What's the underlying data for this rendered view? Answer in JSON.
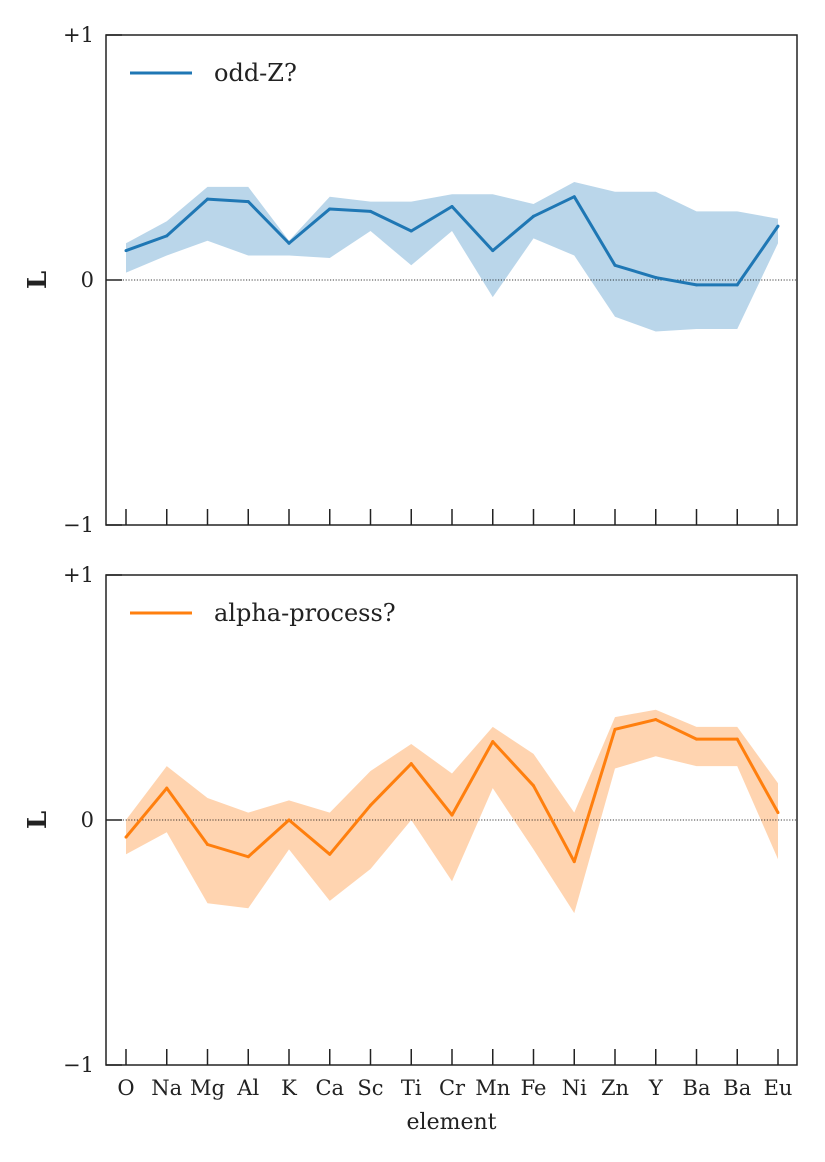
{
  "chart_data": [
    {
      "type": "line",
      "panel": "top",
      "categories": [
        "O",
        "Na",
        "Mg",
        "Al",
        "K",
        "Ca",
        "Sc",
        "Ti",
        "Cr",
        "Mn",
        "Fe",
        "Ni",
        "Zn",
        "Y",
        "Ba",
        "Ba",
        "Eu"
      ],
      "ylabel": "L",
      "xlabel": "",
      "ylim": [
        -1,
        1
      ],
      "yticks": [
        {
          "value": 1,
          "label": "+1"
        },
        {
          "value": 0,
          "label": "0"
        },
        {
          "value": -1,
          "label": "−1"
        }
      ],
      "show_x_tick_labels": false,
      "zero_line": "dotted",
      "legend_placement": "upper-left",
      "series": [
        {
          "name": "odd-Z?",
          "color": "#1f77b4",
          "band_color": "#bad6ea",
          "values": [
            0.12,
            0.18,
            0.33,
            0.32,
            0.15,
            0.29,
            0.28,
            0.2,
            0.3,
            0.12,
            0.26,
            0.34,
            0.06,
            0.01,
            -0.02,
            -0.02,
            0.22
          ],
          "upper": [
            0.15,
            0.24,
            0.38,
            0.38,
            0.16,
            0.34,
            0.32,
            0.32,
            0.35,
            0.35,
            0.31,
            0.4,
            0.36,
            0.36,
            0.28,
            0.28,
            0.25
          ],
          "lower": [
            0.03,
            0.1,
            0.16,
            0.1,
            0.1,
            0.09,
            0.2,
            0.06,
            0.2,
            -0.07,
            0.17,
            0.1,
            -0.15,
            -0.21,
            -0.2,
            -0.2,
            0.15
          ]
        }
      ]
    },
    {
      "type": "line",
      "panel": "bottom",
      "categories": [
        "O",
        "Na",
        "Mg",
        "Al",
        "K",
        "Ca",
        "Sc",
        "Ti",
        "Cr",
        "Mn",
        "Fe",
        "Ni",
        "Zn",
        "Y",
        "Ba",
        "Ba",
        "Eu"
      ],
      "ylabel": "L",
      "xlabel": "element",
      "ylim": [
        -1,
        1
      ],
      "yticks": [
        {
          "value": 1,
          "label": "+1"
        },
        {
          "value": 0,
          "label": "0"
        },
        {
          "value": -1,
          "label": "−1"
        }
      ],
      "show_x_tick_labels": true,
      "zero_line": "dotted",
      "legend_placement": "upper-left",
      "series": [
        {
          "name": "alpha-process?",
          "color": "#ff7f0e",
          "band_color": "#ffd4b0",
          "values": [
            -0.07,
            0.13,
            -0.1,
            -0.15,
            0.0,
            -0.14,
            0.06,
            0.23,
            0.02,
            0.32,
            0.14,
            -0.17,
            0.37,
            0.41,
            0.33,
            0.33,
            0.03
          ],
          "upper": [
            0.0,
            0.22,
            0.09,
            0.03,
            0.08,
            0.03,
            0.2,
            0.31,
            0.19,
            0.38,
            0.27,
            0.03,
            0.42,
            0.45,
            0.38,
            0.38,
            0.15
          ],
          "lower": [
            -0.14,
            -0.05,
            -0.34,
            -0.36,
            -0.12,
            -0.33,
            -0.2,
            0.0,
            -0.25,
            0.13,
            -0.12,
            -0.38,
            0.21,
            0.26,
            0.22,
            0.22,
            -0.16
          ]
        }
      ]
    }
  ]
}
